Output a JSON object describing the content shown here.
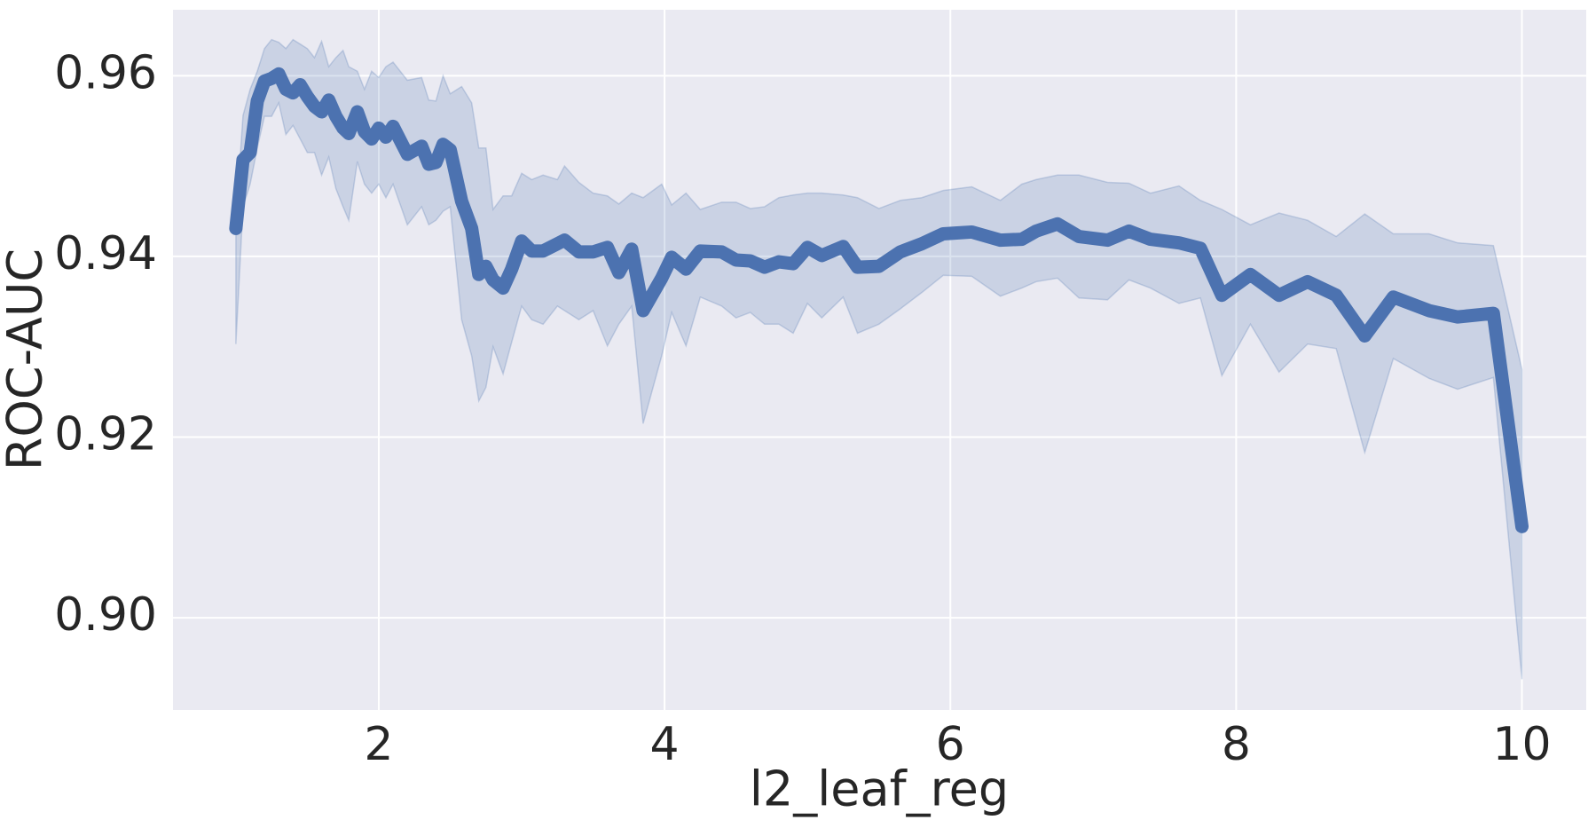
{
  "chart_data": {
    "type": "line",
    "x_label": "l2_leaf_reg",
    "y_label": "ROC-AUC",
    "x": [
      1.0,
      1.05,
      1.1,
      1.15,
      1.2,
      1.25,
      1.3,
      1.35,
      1.4,
      1.45,
      1.5,
      1.55,
      1.6,
      1.65,
      1.7,
      1.75,
      1.79,
      1.85,
      1.9,
      1.95,
      2.0,
      2.05,
      2.1,
      2.2,
      2.3,
      2.35,
      2.4,
      2.45,
      2.5,
      2.58,
      2.65,
      2.7,
      2.75,
      2.8,
      2.87,
      2.93,
      3.0,
      3.07,
      3.15,
      3.25,
      3.3,
      3.4,
      3.5,
      3.6,
      3.68,
      3.77,
      3.85,
      3.98,
      4.05,
      4.15,
      4.25,
      4.4,
      4.5,
      4.6,
      4.7,
      4.8,
      4.9,
      5.0,
      5.1,
      5.25,
      5.35,
      5.5,
      5.65,
      5.8,
      5.95,
      6.15,
      6.35,
      6.5,
      6.6,
      6.75,
      6.9,
      7.1,
      7.25,
      7.4,
      7.6,
      7.75,
      7.9,
      8.1,
      8.3,
      8.5,
      8.7,
      8.9,
      9.1,
      9.35,
      9.55,
      9.8,
      10.0
    ],
    "values": [
      0.9431,
      0.9507,
      0.9515,
      0.9572,
      0.9594,
      0.9597,
      0.9602,
      0.9585,
      0.9581,
      0.959,
      0.9577,
      0.9566,
      0.956,
      0.9573,
      0.9555,
      0.9542,
      0.9536,
      0.956,
      0.9538,
      0.953,
      0.9542,
      0.9532,
      0.9544,
      0.9513,
      0.9522,
      0.9502,
      0.9504,
      0.9524,
      0.9518,
      0.9461,
      0.9431,
      0.938,
      0.9389,
      0.9374,
      0.9365,
      0.9386,
      0.9417,
      0.9406,
      0.9406,
      0.9414,
      0.9418,
      0.9405,
      0.9405,
      0.941,
      0.9382,
      0.9408,
      0.934,
      0.9376,
      0.9399,
      0.9386,
      0.9406,
      0.9405,
      0.9396,
      0.9395,
      0.9388,
      0.9394,
      0.9392,
      0.941,
      0.9401,
      0.9411,
      0.9388,
      0.9389,
      0.9405,
      0.9414,
      0.9425,
      0.9427,
      0.9418,
      0.9419,
      0.9428,
      0.9436,
      0.9422,
      0.9418,
      0.9428,
      0.9419,
      0.9415,
      0.9409,
      0.9357,
      0.938,
      0.9357,
      0.9372,
      0.9357,
      0.9312,
      0.9355,
      0.934,
      0.9333,
      0.9337,
      0.9101
    ],
    "ci_lower": [
      0.9303,
      0.9455,
      0.948,
      0.952,
      0.9555,
      0.9555,
      0.957,
      0.9535,
      0.9545,
      0.953,
      0.9515,
      0.9515,
      0.949,
      0.951,
      0.9475,
      0.9455,
      0.944,
      0.9505,
      0.948,
      0.947,
      0.948,
      0.9465,
      0.948,
      0.9435,
      0.9455,
      0.9435,
      0.944,
      0.945,
      0.9455,
      0.933,
      0.929,
      0.924,
      0.9255,
      0.93,
      0.927,
      0.9305,
      0.9345,
      0.933,
      0.9325,
      0.9345,
      0.934,
      0.933,
      0.934,
      0.9301,
      0.9325,
      0.9345,
      0.9215,
      0.929,
      0.9338,
      0.9301,
      0.9355,
      0.9345,
      0.9332,
      0.9338,
      0.9325,
      0.9325,
      0.9315,
      0.9348,
      0.9332,
      0.9355,
      0.9315,
      0.9325,
      0.9342,
      0.936,
      0.9379,
      0.9378,
      0.9356,
      0.9365,
      0.9372,
      0.9376,
      0.9354,
      0.9352,
      0.9374,
      0.9365,
      0.9348,
      0.9354,
      0.9268,
      0.9325,
      0.9272,
      0.9303,
      0.9298,
      0.9183,
      0.9287,
      0.9265,
      0.9253,
      0.9266,
      0.8932
    ],
    "ci_upper": [
      0.944,
      0.9556,
      0.9585,
      0.9605,
      0.963,
      0.964,
      0.9637,
      0.963,
      0.964,
      0.9635,
      0.963,
      0.962,
      0.9638,
      0.961,
      0.962,
      0.9628,
      0.961,
      0.9605,
      0.9585,
      0.9605,
      0.9598,
      0.961,
      0.9615,
      0.9595,
      0.9598,
      0.9573,
      0.9572,
      0.96,
      0.958,
      0.9588,
      0.957,
      0.952,
      0.952,
      0.9452,
      0.9467,
      0.9467,
      0.9492,
      0.9485,
      0.949,
      0.9485,
      0.95,
      0.9482,
      0.947,
      0.9467,
      0.9458,
      0.947,
      0.9465,
      0.948,
      0.9457,
      0.947,
      0.9452,
      0.946,
      0.946,
      0.9453,
      0.9455,
      0.9465,
      0.9468,
      0.947,
      0.947,
      0.9468,
      0.9465,
      0.9453,
      0.9462,
      0.9465,
      0.9473,
      0.9477,
      0.9462,
      0.948,
      0.9485,
      0.949,
      0.949,
      0.9482,
      0.9481,
      0.947,
      0.9478,
      0.9462,
      0.9452,
      0.9435,
      0.9448,
      0.944,
      0.9422,
      0.9447,
      0.9425,
      0.9425,
      0.9415,
      0.9412,
      0.9275
    ],
    "color": "#4c72b0",
    "xlim": [
      0.56,
      10.45
    ],
    "ylim": [
      0.8898,
      0.9673
    ],
    "xticks": [
      2,
      4,
      6,
      8,
      10
    ],
    "yticks": [
      {
        "value": 0.9,
        "label": "0.90"
      },
      0.92,
      0.94,
      0.96
    ],
    "grid": true
  }
}
